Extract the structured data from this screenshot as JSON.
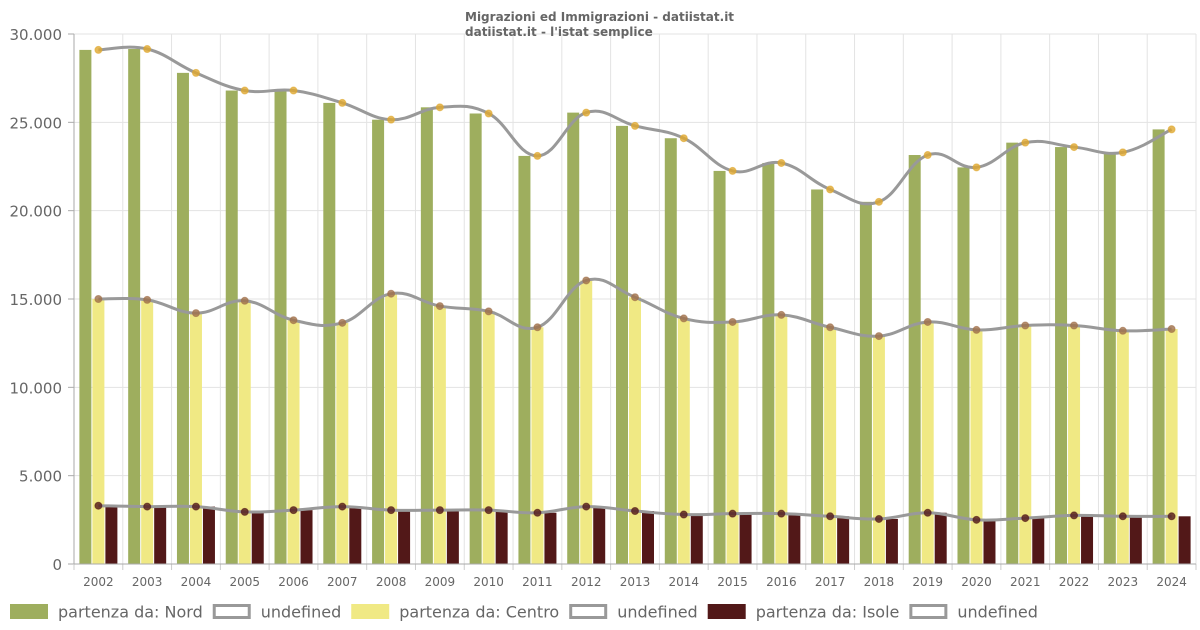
{
  "chart_data": {
    "type": "bar",
    "title": "Migrazioni ed Immigrazioni - datiistat.it",
    "subtitle": "datiistat.it - l'istat semplice",
    "xlabel": "",
    "ylabel": "",
    "ylim": [
      0,
      30000
    ],
    "y_ticks": [
      0,
      5000,
      10000,
      15000,
      20000,
      25000,
      30000
    ],
    "y_tick_labels": [
      "0",
      "5.000",
      "10.000",
      "15.000",
      "20.000",
      "25.000",
      "30.000"
    ],
    "grid": true,
    "legend_position": "bottom",
    "categories": [
      "2002",
      "2003",
      "2004",
      "2005",
      "2006",
      "2007",
      "2008",
      "2009",
      "2010",
      "2011",
      "2012",
      "2013",
      "2014",
      "2015",
      "2016",
      "2017",
      "2018",
      "2019",
      "2020",
      "2021",
      "2022",
      "2023",
      "2024"
    ],
    "series": [
      {
        "name": "partenza da: Nord",
        "kind": "bar",
        "color": "#9eae5e",
        "values": [
          29100,
          29150,
          27800,
          26800,
          26800,
          26100,
          25150,
          25850,
          25500,
          23100,
          25550,
          24800,
          24100,
          22250,
          22700,
          21200,
          20500,
          23150,
          22450,
          23850,
          23600,
          23300,
          24600
        ]
      },
      {
        "name": "undefined",
        "kind": "line",
        "color": "#999999",
        "marker_color": "#e0a82e",
        "line_of": "partenza da: Nord",
        "values": [
          29100,
          29150,
          27800,
          26800,
          26800,
          26100,
          25150,
          25850,
          25500,
          23100,
          25550,
          24800,
          24100,
          22250,
          22700,
          21200,
          20500,
          23150,
          22450,
          23850,
          23600,
          23300,
          24600
        ]
      },
      {
        "name": "partenza da: Centro",
        "kind": "bar",
        "color": "#f0e984",
        "values": [
          15000,
          14950,
          14200,
          14900,
          13800,
          13650,
          15300,
          14600,
          14300,
          13400,
          16050,
          15100,
          13900,
          13700,
          14100,
          13400,
          12900,
          13700,
          13250,
          13500,
          13500,
          13200,
          13300
        ]
      },
      {
        "name": "undefined",
        "kind": "line",
        "color": "#999999",
        "marker_color": "#a0704a",
        "line_of": "partenza da: Centro",
        "values": [
          15000,
          14950,
          14200,
          14900,
          13800,
          13650,
          15300,
          14600,
          14300,
          13400,
          16050,
          15100,
          13900,
          13700,
          14100,
          13400,
          12900,
          13700,
          13250,
          13500,
          13500,
          13200,
          13300
        ]
      },
      {
        "name": "partenza da: Isole",
        "kind": "bar",
        "color": "#521818",
        "values": [
          3300,
          3250,
          3250,
          2950,
          3050,
          3250,
          3050,
          3050,
          3050,
          2900,
          3250,
          3000,
          2800,
          2850,
          2850,
          2700,
          2550,
          2900,
          2500,
          2600,
          2750,
          2700,
          2700
        ]
      },
      {
        "name": "undefined",
        "kind": "line",
        "color": "#999999",
        "marker_color": "#521818",
        "line_of": "partenza da: Isole",
        "values": [
          3300,
          3250,
          3250,
          2950,
          3050,
          3250,
          3050,
          3050,
          3050,
          2900,
          3250,
          3000,
          2800,
          2850,
          2850,
          2700,
          2550,
          2900,
          2500,
          2600,
          2750,
          2700,
          2700
        ]
      }
    ]
  }
}
